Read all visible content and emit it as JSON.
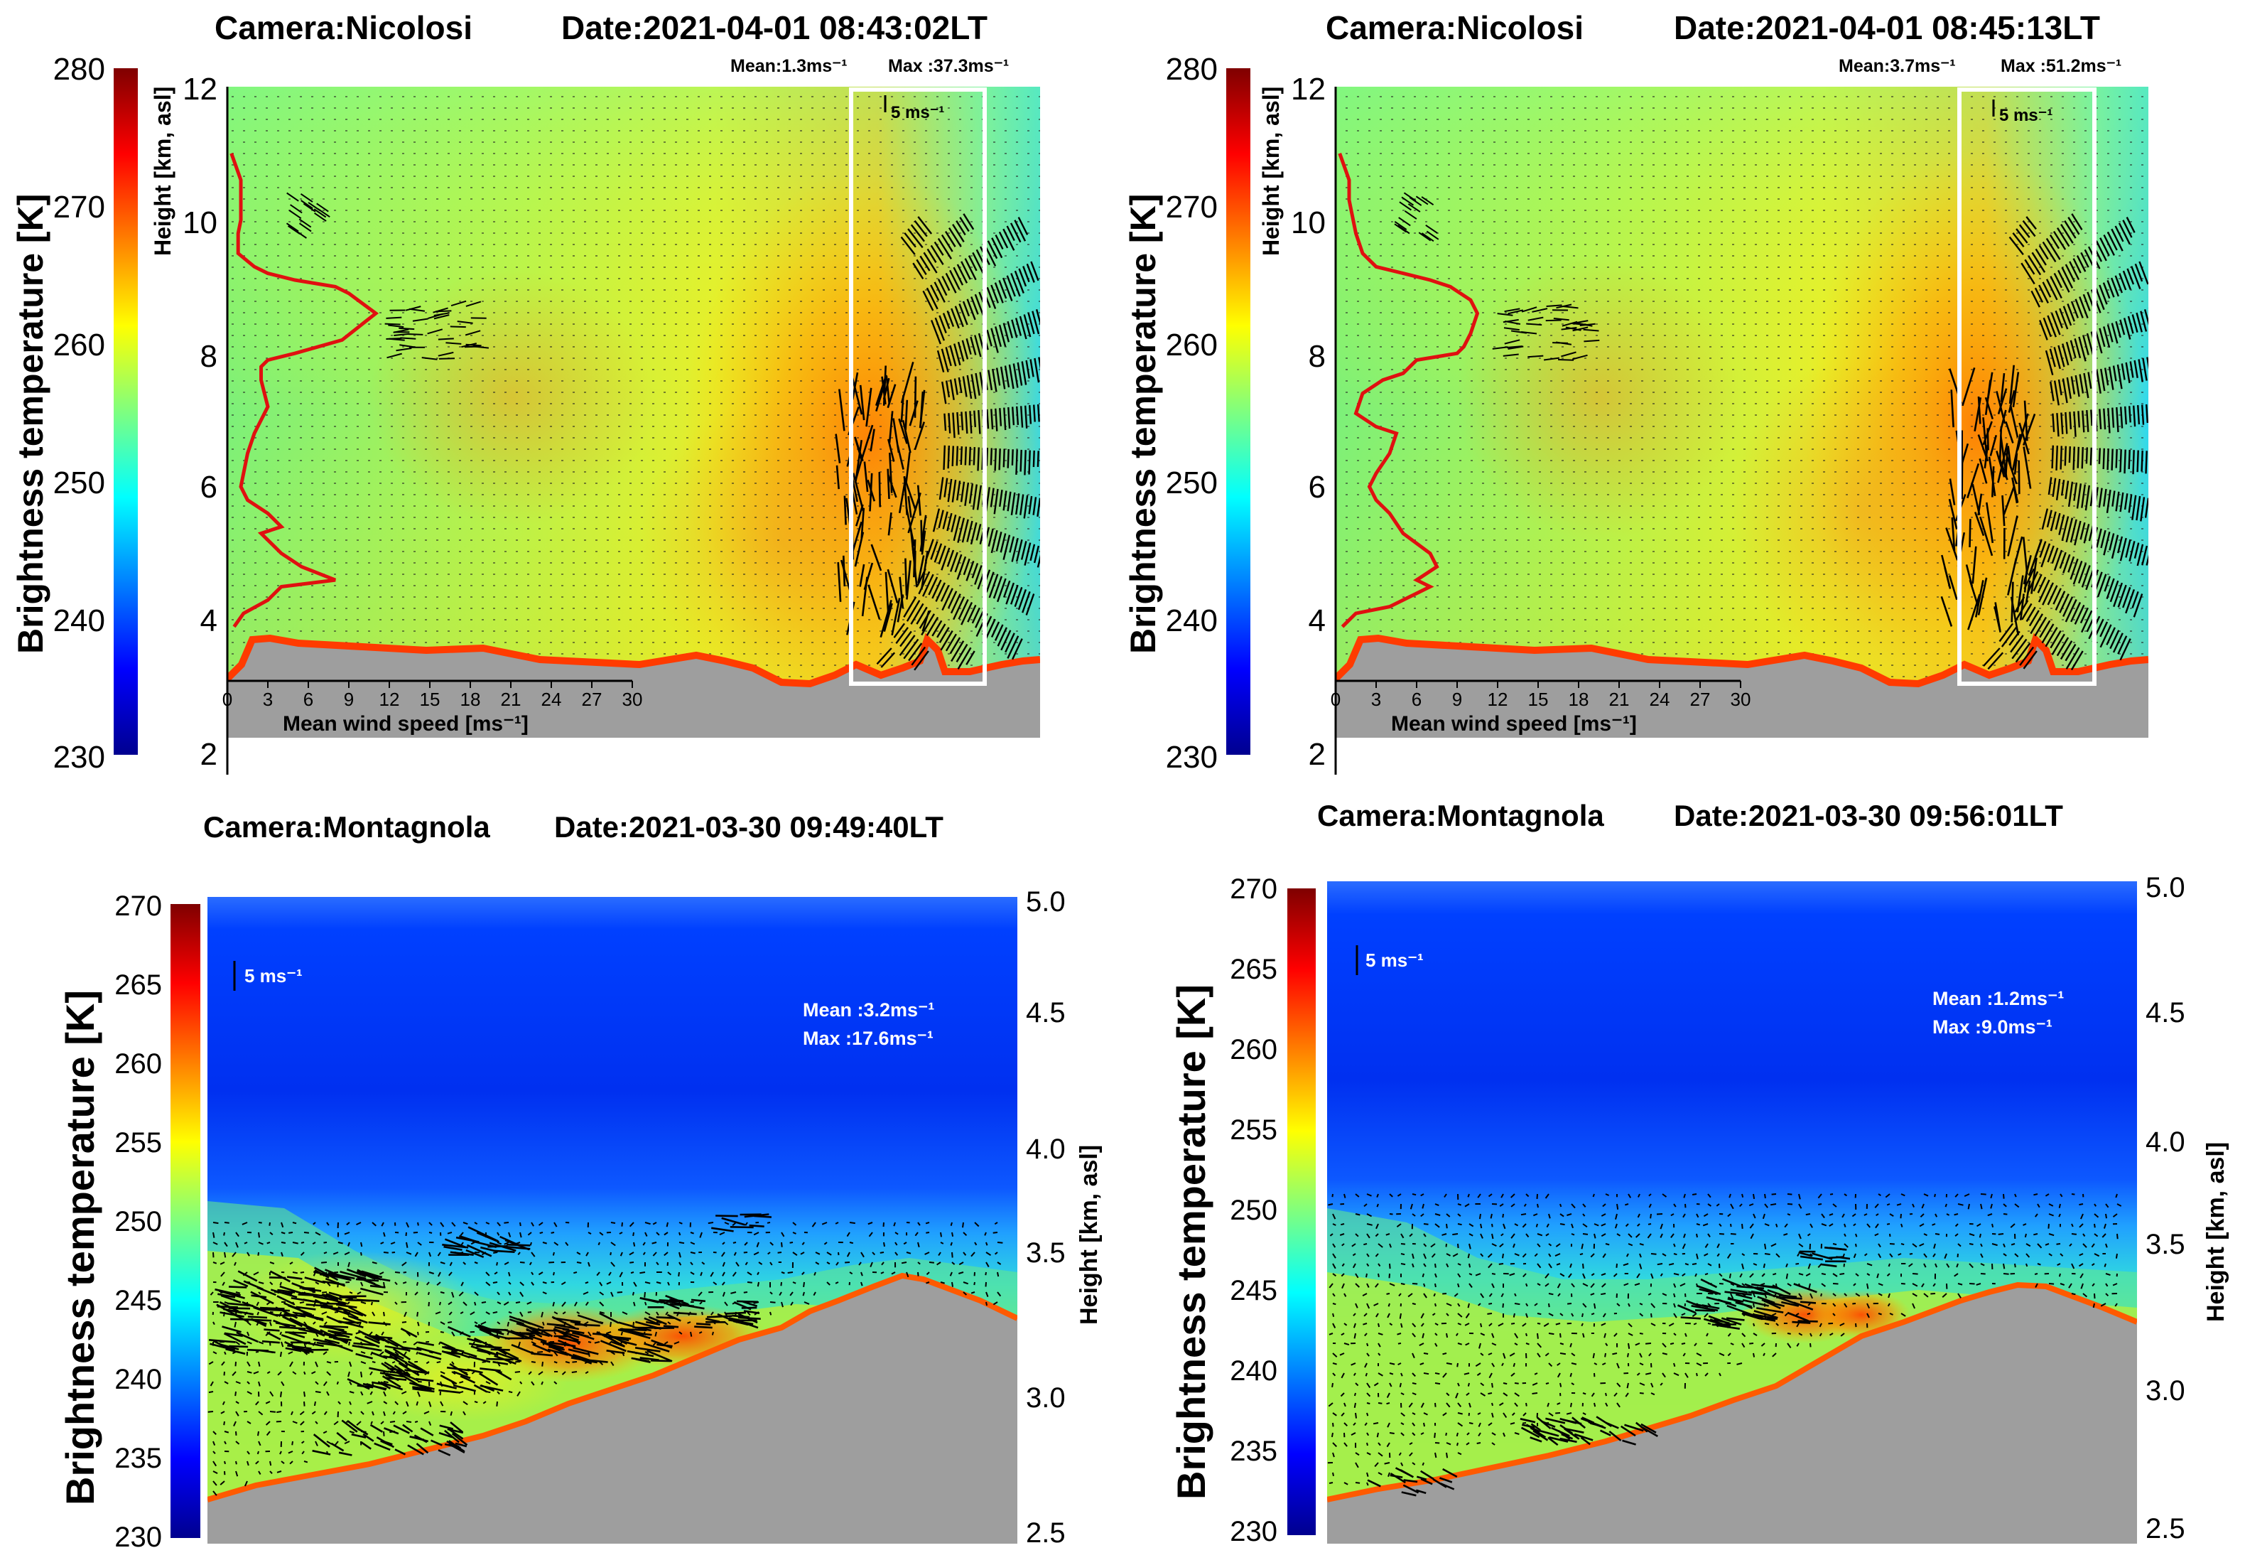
{
  "chart_data": [
    {
      "type": "heatmap",
      "title": "Camera:Nicolosi     Date:2021-04-01 08:43:02LT",
      "stats": [
        "Mean:1.3ms⁻¹",
        "Max :37.3ms⁻¹"
      ],
      "colorbar": {
        "label": "Brightness temperature [K]",
        "ticks": [
          "230",
          "240",
          "250",
          "260",
          "270",
          "280"
        ],
        "range": [
          230,
          280
        ]
      },
      "height_axis": {
        "label": "Height [km, asl]",
        "ticks": [
          "2",
          "4",
          "6",
          "8",
          "10",
          "12"
        ],
        "range": [
          2,
          12
        ]
      },
      "wind_axis": {
        "label": "Mean wind speed [ms⁻¹]",
        "ticks": [
          "0",
          "3",
          "6",
          "9",
          "12",
          "15",
          "18",
          "21",
          "24",
          "27",
          "30"
        ],
        "range": [
          0,
          30
        ]
      },
      "scale_label": "5 ms⁻¹",
      "wind_profile": {
        "speed": [
          0.3,
          1,
          1,
          1,
          0.8,
          0.8,
          2,
          3,
          5,
          8,
          9,
          11,
          8.5,
          5,
          3,
          2.5,
          2.5,
          3,
          2,
          1.5,
          1,
          1.5,
          3,
          4,
          2.5,
          3.5,
          4,
          5.5,
          8,
          4,
          3.5,
          3,
          1.2,
          0.5
        ],
        "height": [
          11,
          10.6,
          10.3,
          10,
          9.8,
          9.5,
          9.3,
          9.2,
          9.1,
          9,
          8.9,
          8.6,
          8.2,
          8,
          7.9,
          7.8,
          7.6,
          7.2,
          6.8,
          6.5,
          6,
          5.8,
          5.6,
          5.4,
          5.3,
          5.1,
          5,
          4.8,
          4.6,
          4.5,
          4.4,
          4.3,
          4.1,
          3.9
        ]
      },
      "overlay": "white rectangle marking wind field region"
    },
    {
      "type": "heatmap",
      "title": "Camera:Nicolosi     Date:2021-04-01 08:45:13LT",
      "stats": [
        "Mean:3.7ms⁻¹",
        "Max :51.2ms⁻¹"
      ],
      "colorbar": {
        "label": "Brightness temperature [K]",
        "ticks": [
          "230",
          "240",
          "250",
          "260",
          "270",
          "280"
        ],
        "range": [
          230,
          280
        ]
      },
      "height_axis": {
        "label": "Height [km, asl]",
        "ticks": [
          "2",
          "4",
          "6",
          "8",
          "10",
          "12"
        ],
        "range": [
          2,
          12
        ]
      },
      "wind_axis": {
        "label": "Mean wind speed [ms⁻¹]",
        "ticks": [
          "0",
          "3",
          "6",
          "9",
          "12",
          "15",
          "18",
          "21",
          "24",
          "27",
          "30"
        ],
        "range": [
          0,
          30
        ]
      },
      "scale_label": "5 ms⁻¹",
      "wind_profile": {
        "speed": [
          0.3,
          1,
          1,
          1.5,
          2,
          3,
          5,
          7,
          8.5,
          10,
          10.5,
          10,
          9.5,
          9,
          6,
          5,
          3.5,
          2,
          1.5,
          3,
          4.5,
          4,
          3,
          2.5,
          3,
          4,
          5,
          7,
          7.5,
          6,
          7,
          4,
          1.5,
          0.5
        ],
        "height": [
          11,
          10.6,
          10.3,
          9.8,
          9.5,
          9.3,
          9.2,
          9.1,
          9,
          8.8,
          8.6,
          8.3,
          8.1,
          8,
          7.9,
          7.7,
          7.6,
          7.4,
          7.1,
          6.9,
          6.8,
          6.5,
          6.2,
          6,
          5.8,
          5.6,
          5.3,
          5,
          4.8,
          4.6,
          4.5,
          4.2,
          4.1,
          3.9
        ]
      },
      "overlay": "white rectangle marking wind field region"
    },
    {
      "type": "heatmap",
      "title": "Camera:Montagnola    Date:2021-03-30 09:49:40LT",
      "stats": [
        "Mean  :3.2ms⁻¹",
        "Max :17.6ms⁻¹"
      ],
      "colorbar": {
        "label": "Brightness temperature [K]",
        "ticks": [
          "230",
          "235",
          "240",
          "245",
          "250",
          "255",
          "260",
          "265",
          "270"
        ],
        "range": [
          230,
          270
        ]
      },
      "height_axis": {
        "label": "Height [km, asl]",
        "ticks": [
          "2.5",
          "3.0",
          "3.5",
          "4.0",
          "4.5",
          "5.0"
        ],
        "range": [
          2.5,
          5.0
        ]
      },
      "scale_label": "5 ms⁻¹"
    },
    {
      "type": "heatmap",
      "title": "Camera:Montagnola    Date:2021-03-30 09:56:01LT",
      "stats": [
        "Mean  :1.2ms⁻¹",
        "Max :9.0ms⁻¹"
      ],
      "colorbar": {
        "label": "Brightness temperature [K]",
        "ticks": [
          "230",
          "235",
          "240",
          "245",
          "250",
          "255",
          "260",
          "265",
          "270"
        ],
        "range": [
          230,
          270
        ]
      },
      "height_axis": {
        "label": "Height [km, asl]",
        "ticks": [
          "2.5",
          "3.0",
          "3.5",
          "4.0",
          "4.5",
          "5.0"
        ],
        "range": [
          2.5,
          5.0
        ]
      },
      "scale_label": "5 ms⁻¹"
    }
  ],
  "colors": {
    "ground": "#9e9e9e",
    "profile": "#e01010",
    "crater_rim": "#ff3b00",
    "frame": "#ffffff"
  }
}
